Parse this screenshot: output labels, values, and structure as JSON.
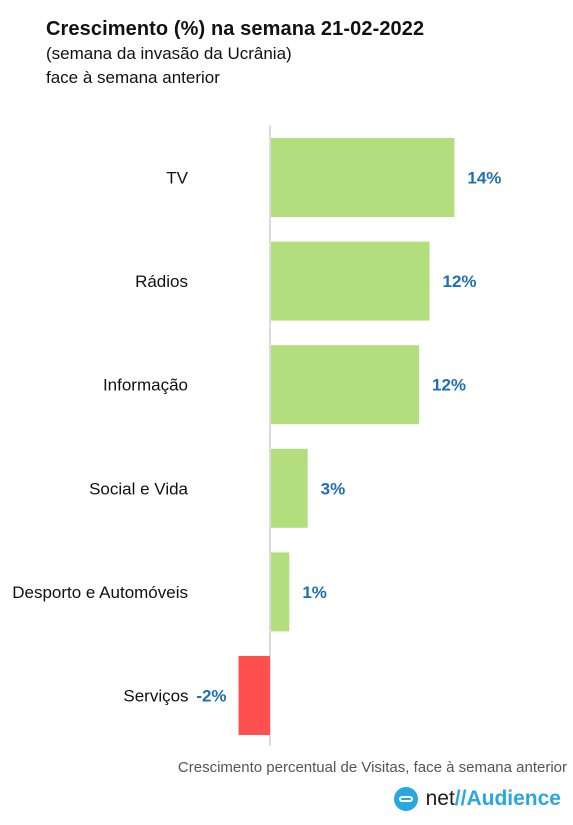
{
  "chart_data": {
    "type": "bar",
    "orientation": "horizontal",
    "title": "Crescimento (%) na semana 21-02-2022",
    "subtitle_lines": [
      "(semana da invasão da Ucrânia)",
      "face à semana anterior"
    ],
    "categories": [
      "TV",
      "Rádios",
      "Informação",
      "Social e Vida",
      "Desporto e Automóveis",
      "Serviços"
    ],
    "values": [
      14,
      12,
      12,
      3,
      1,
      -2
    ],
    "bar_values": [
      14.0,
      12.1,
      11.3,
      2.8,
      1.4,
      -2.4
    ],
    "value_labels": [
      "14%",
      "12%",
      "12%",
      "3%",
      "1%",
      "-2%"
    ],
    "positive_color": "#b3de7d",
    "negative_color": "#ff5050",
    "label_color": "#1f6fb2",
    "xlim": [
      -2.4,
      16
    ],
    "grid": false,
    "legend": "none",
    "note": "Crescimento percentual de Visitas, face à semana anterior"
  },
  "brand": {
    "net": "net",
    "separator": "//",
    "name": "Audience",
    "icon": "netaudience-logo-icon"
  }
}
